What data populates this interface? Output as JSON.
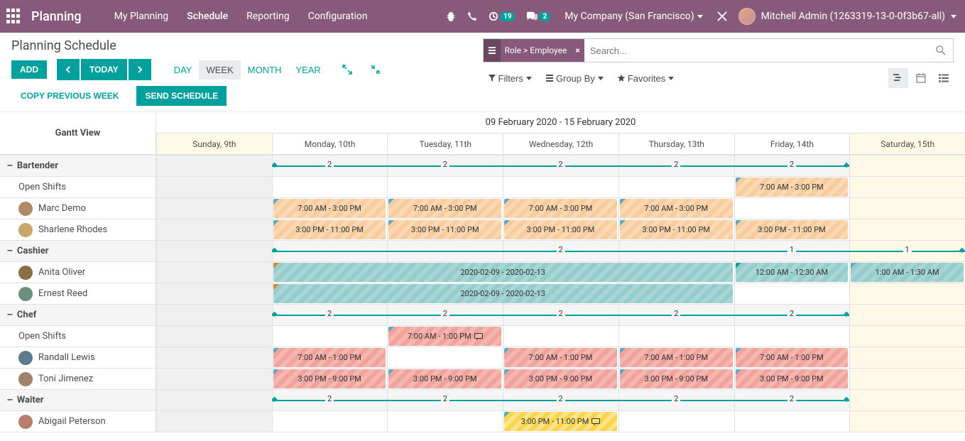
{
  "nav": {
    "brand": "Planning",
    "menu": [
      "My Planning",
      "Schedule",
      "Reporting",
      "Configuration"
    ],
    "activeMenu": 1,
    "messagesBadge": "19",
    "chatBadge": "2",
    "company": "My Company (San Francisco)",
    "user": "Mitchell Admin (1263319-13-0-0f3b67-all)"
  },
  "breadcrumb": "Planning Schedule",
  "buttons": {
    "add": "ADD",
    "today": "TODAY",
    "copyPrev": "COPY PREVIOUS WEEK",
    "sendSchedule": "SEND SCHEDULE"
  },
  "scales": {
    "day": "DAY",
    "week": "WEEK",
    "month": "MONTH",
    "year": "YEAR",
    "active": "week"
  },
  "search": {
    "facet": "Role > Employee",
    "placeholder": "Search...",
    "filters": "Filters",
    "groupBy": "Group By",
    "favorites": "Favorites"
  },
  "gantt": {
    "title": "Gantt View",
    "dateRange": "09 February 2020 - 15 February 2020",
    "days": [
      {
        "label": "Sunday, 9th",
        "weekend": true,
        "past": true
      },
      {
        "label": "Monday, 10th",
        "weekend": false
      },
      {
        "label": "Tuesday, 11th",
        "weekend": false
      },
      {
        "label": "Wednesday, 12th",
        "weekend": false
      },
      {
        "label": "Thursday, 13th",
        "weekend": false
      },
      {
        "label": "Friday, 14th",
        "weekend": false
      },
      {
        "label": "Saturday, 15th",
        "weekend": true
      }
    ],
    "groups": [
      {
        "name": "Bartender",
        "summary": {
          "start": 1,
          "end": 6,
          "counts": [
            {
              "day": 1,
              "n": "2"
            },
            {
              "day": 2,
              "n": "2"
            },
            {
              "day": 3,
              "n": "2"
            },
            {
              "day": 4,
              "n": "2"
            },
            {
              "day": 5,
              "n": "2"
            }
          ]
        },
        "rows": [
          {
            "name": "Open Shifts",
            "avatar": null,
            "shifts": [
              {
                "start": 5,
                "span": 1,
                "label": "7:00 AM - 3:00 PM",
                "color": "orange"
              }
            ]
          },
          {
            "name": "Marc Demo",
            "avatarColor": "#b08968",
            "shifts": [
              {
                "start": 1,
                "span": 1,
                "label": "7:00 AM - 3:00 PM",
                "color": "orange"
              },
              {
                "start": 2,
                "span": 1,
                "label": "7:00 AM - 3:00 PM",
                "color": "orange"
              },
              {
                "start": 3,
                "span": 1,
                "label": "7:00 AM - 3:00 PM",
                "color": "orange"
              },
              {
                "start": 4,
                "span": 1,
                "label": "7:00 AM - 3:00 PM",
                "color": "orange"
              }
            ]
          },
          {
            "name": "Sharlene Rhodes",
            "avatarColor": "#c9a66b",
            "shifts": [
              {
                "start": 1,
                "span": 1,
                "label": "3:00 PM - 11:00 PM",
                "color": "orange"
              },
              {
                "start": 2,
                "span": 1,
                "label": "3:00 PM - 11:00 PM",
                "color": "orange"
              },
              {
                "start": 3,
                "span": 1,
                "label": "3:00 PM - 11:00 PM",
                "color": "orange"
              },
              {
                "start": 4,
                "span": 1,
                "label": "3:00 PM - 11:00 PM",
                "color": "orange"
              },
              {
                "start": 5,
                "span": 1,
                "label": "3:00 PM - 11:00 PM",
                "color": "orange"
              }
            ]
          }
        ]
      },
      {
        "name": "Cashier",
        "summary": {
          "start": 1,
          "end": 7,
          "counts": [
            {
              "day": 3,
              "n": "2"
            },
            {
              "day": 5,
              "n": "1"
            },
            {
              "day": 6,
              "n": "1"
            }
          ]
        },
        "rows": [
          {
            "name": "Anita Oliver",
            "avatarColor": "#8b6f47",
            "shifts": [
              {
                "start": 1,
                "span": 4,
                "label": "2020-02-09 - 2020-02-13",
                "color": "teal",
                "corner": "orange"
              },
              {
                "start": 5,
                "span": 1,
                "label": "12:00 AM - 12:30 AM",
                "color": "teal",
                "corner": "teal"
              },
              {
                "start": 6,
                "span": 1,
                "label": "1:00 AM - 1:30 AM",
                "color": "teal"
              }
            ]
          },
          {
            "name": "Ernest Reed",
            "avatarColor": "#6b8e7f",
            "shifts": [
              {
                "start": 1,
                "span": 4,
                "label": "2020-02-09 - 2020-02-13",
                "color": "teal",
                "corner": "orange"
              }
            ]
          }
        ]
      },
      {
        "name": "Chef",
        "summary": {
          "start": 1,
          "end": 6,
          "counts": [
            {
              "day": 1,
              "n": "2"
            },
            {
              "day": 2,
              "n": "2"
            },
            {
              "day": 3,
              "n": "2"
            },
            {
              "day": 4,
              "n": "2"
            },
            {
              "day": 5,
              "n": "2"
            }
          ]
        },
        "rows": [
          {
            "name": "Open Shifts",
            "avatar": null,
            "shifts": [
              {
                "start": 2,
                "span": 1,
                "label": "7:00 AM - 1:00 PM",
                "color": "red",
                "msg": true
              }
            ]
          },
          {
            "name": "Randall Lewis",
            "avatarColor": "#5d7a8f",
            "shifts": [
              {
                "start": 1,
                "span": 1,
                "label": "7:00 AM - 1:00 PM",
                "color": "red"
              },
              {
                "start": 3,
                "span": 1,
                "label": "7:00 AM - 1:00 PM",
                "color": "red"
              },
              {
                "start": 4,
                "span": 1,
                "label": "7:00 AM - 1:00 PM",
                "color": "red"
              },
              {
                "start": 5,
                "span": 1,
                "label": "7:00 AM - 1:00 PM",
                "color": "red"
              }
            ]
          },
          {
            "name": "Toni Jimenez",
            "avatarColor": "#a0826d",
            "shifts": [
              {
                "start": 1,
                "span": 1,
                "label": "3:00 PM - 9:00 PM",
                "color": "red"
              },
              {
                "start": 2,
                "span": 1,
                "label": "3:00 PM - 9:00 PM",
                "color": "red"
              },
              {
                "start": 3,
                "span": 1,
                "label": "3:00 PM - 9:00 PM",
                "color": "red"
              },
              {
                "start": 4,
                "span": 1,
                "label": "3:00 PM - 9:00 PM",
                "color": "red"
              },
              {
                "start": 5,
                "span": 1,
                "label": "3:00 PM - 9:00 PM",
                "color": "red"
              }
            ]
          }
        ]
      },
      {
        "name": "Waiter",
        "summary": {
          "start": 1,
          "end": 6,
          "counts": [
            {
              "day": 1,
              "n": "2"
            },
            {
              "day": 2,
              "n": "2"
            },
            {
              "day": 3,
              "n": "2"
            },
            {
              "day": 4,
              "n": "2"
            },
            {
              "day": 5,
              "n": "2"
            }
          ]
        },
        "rows": [
          {
            "name": "Abigail Peterson",
            "avatarColor": "#b87d6f",
            "shifts": [
              {
                "start": 3,
                "span": 1,
                "label": "3:00 PM - 11:00 PM",
                "color": "yellow",
                "msg": true
              }
            ]
          }
        ]
      }
    ]
  }
}
